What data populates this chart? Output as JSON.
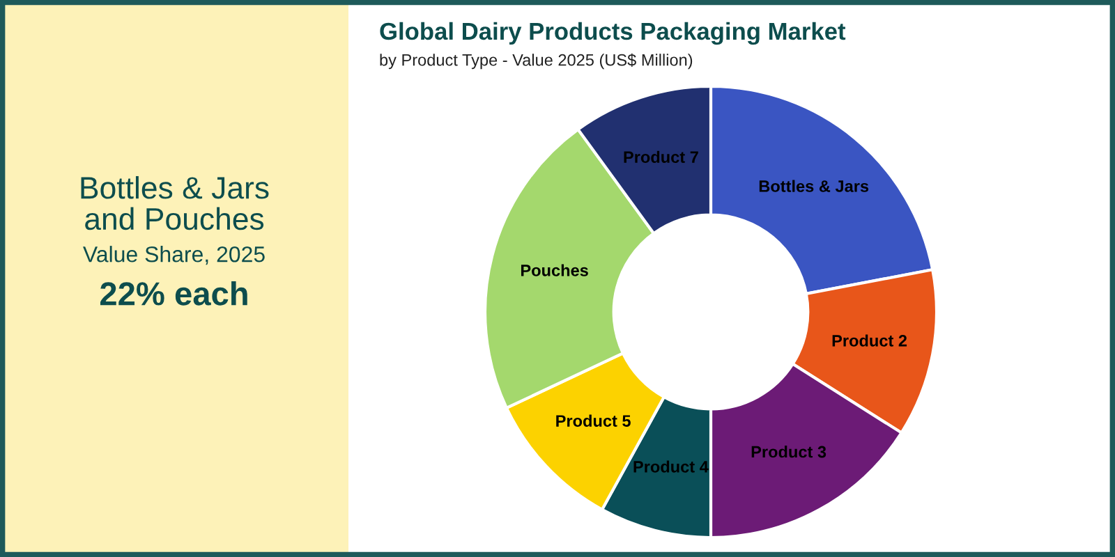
{
  "chart_data": {
    "type": "donut",
    "title": "Global Dairy Products Packaging Market",
    "subtitle": "by Product Type - Value 2025 (US$ Million)",
    "categories": [
      "Bottles & Jars",
      "Product 2",
      "Product 3",
      "Product 4",
      "Product 5",
      "Pouches",
      "Product 7"
    ],
    "values": [
      22,
      12,
      16,
      8,
      10,
      22,
      10
    ],
    "colors": [
      "#3a55c2",
      "#e8561a",
      "#6c1b76",
      "#0a4f58",
      "#fcd200",
      "#a4d86d",
      "#213070"
    ],
    "annotations": [
      "Bottles & Jars\nand Pouches",
      "Value Share, 2025",
      "22% each"
    ],
    "legend": false
  }
}
